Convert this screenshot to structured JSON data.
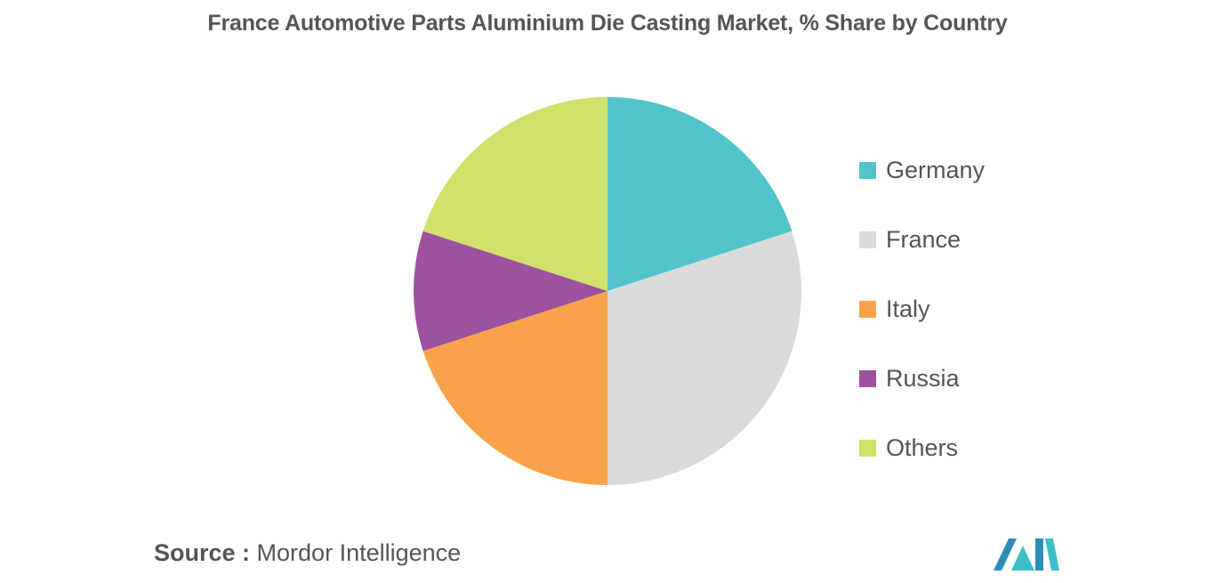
{
  "chart_data": {
    "type": "pie",
    "title": "France Automotive Parts Aluminium Die Casting Market, % Share by Country",
    "categories": [
      "Germany",
      "France",
      "Italy",
      "Russia",
      "Others"
    ],
    "values": [
      20,
      30,
      20,
      10,
      20
    ],
    "colors": [
      "#52C3C9",
      "#DADADA",
      "#F9A24B",
      "#9D529F",
      "#D0E06A"
    ],
    "legend_position": "right",
    "start_angle": "12 o'clock",
    "direction": "clockwise"
  },
  "source": {
    "prefix": "Source :",
    "text": "Mordor Intelligence"
  },
  "logo": {
    "name": "mordor-intelligence-logo",
    "colors": [
      "#2E8DB8",
      "#3BC0C8"
    ]
  }
}
